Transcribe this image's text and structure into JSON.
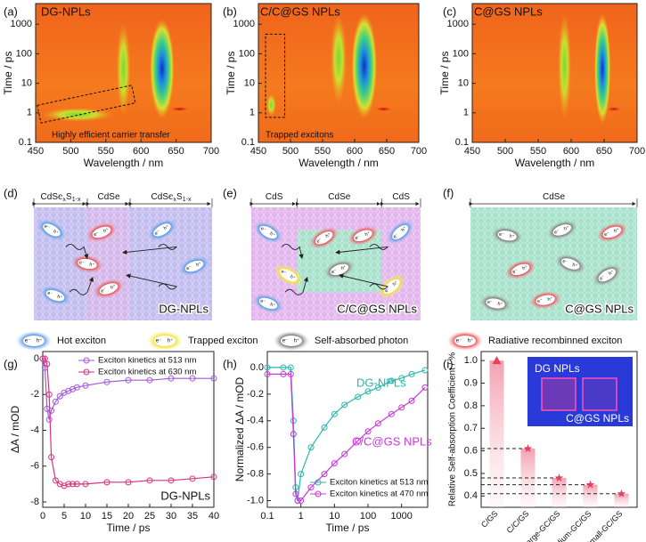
{
  "panel_labels": [
    "(a)",
    "(b)",
    "(c)",
    "(d)",
    "(e)",
    "(f)",
    "(g)",
    "(h)",
    "(i)"
  ],
  "chart_data": [
    {
      "type": "heatmap",
      "title": "DG-NPLs",
      "annotation": "Highly efficient carrier transfer",
      "xlabel": "Wavelength / nm",
      "ylabel": "Time / ps",
      "xlim": [
        450,
        700
      ],
      "xticks": [
        450,
        500,
        550,
        600,
        650,
        700
      ],
      "ylim": [
        0.1,
        5000
      ],
      "yticks": [
        0.1,
        1,
        10,
        100,
        1000
      ],
      "ylog": true
    },
    {
      "type": "heatmap",
      "title": "C/C@GS NPLs",
      "annotation": "Trapped excitons",
      "xlabel": "Wavelength / nm",
      "ylabel": "Time / ps",
      "xlim": [
        450,
        700
      ],
      "xticks": [
        450,
        500,
        550,
        600,
        650,
        700
      ],
      "ylim": [
        0.1,
        5000
      ],
      "yticks": [
        0.1,
        1,
        10,
        100,
        1000
      ],
      "ylog": true
    },
    {
      "type": "heatmap",
      "title": "C@GS NPLs",
      "xlabel": "Wavelength / nm",
      "ylabel": "Time / ps",
      "xlim": [
        450,
        700
      ],
      "xticks": [
        450,
        500,
        550,
        600,
        650,
        700
      ],
      "ylim": [
        0.1,
        5000
      ],
      "yticks": [
        0.1,
        1,
        10,
        100,
        1000
      ],
      "ylog": true
    },
    {
      "type": "line",
      "annotation": "DG-NPLs",
      "xlabel": "Time / ps",
      "ylabel": "ΔA / mOD",
      "xlim": [
        0,
        40
      ],
      "xticks": [
        0,
        5,
        10,
        15,
        20,
        25,
        30,
        35,
        40
      ],
      "ylim": [
        -8.3,
        0.4
      ],
      "yticks": [
        0,
        -2,
        -4,
        -6,
        -8
      ],
      "legend": "upper right",
      "x": [
        0,
        0.5,
        1,
        1.5,
        2,
        3,
        4,
        5,
        6,
        7,
        8,
        10,
        15,
        20,
        25,
        30,
        35,
        40
      ],
      "series": [
        {
          "name": "Exciton kinetics at 513 nm",
          "color": "#a25ad8",
          "values": [
            0,
            -0.5,
            -2.8,
            -3.4,
            -2.9,
            -2.4,
            -2.1,
            -1.9,
            -1.8,
            -1.7,
            -1.6,
            -1.5,
            -1.3,
            -1.2,
            -1.2,
            -1.1,
            -1.1,
            -1.1
          ]
        },
        {
          "name": "Exciton kinetics at 630 nm",
          "color": "#d8327e",
          "values": [
            0,
            0,
            -0.3,
            -2,
            -5.5,
            -6.8,
            -7,
            -7.1,
            -7,
            -7,
            -7,
            -7,
            -6.9,
            -6.9,
            -6.8,
            -6.8,
            -6.7,
            -6.6
          ]
        }
      ]
    },
    {
      "type": "line",
      "annotations": [
        "DG-NPLs",
        "C/C@GS NPLs"
      ],
      "xlabel": "Time / ps",
      "ylabel": "Normalized ΔA / mOD",
      "xlim": [
        0.1,
        6000
      ],
      "xticks": [
        0.1,
        1,
        10,
        100,
        1000
      ],
      "xlog": true,
      "ylim": [
        -1.05,
        0.12
      ],
      "yticks": [
        {
          "value": -1,
          "label": "-1.0"
        },
        {
          "value": -0.8,
          "label": "-0.8"
        },
        {
          "value": -0.6,
          "label": "-0.6"
        },
        {
          "value": -0.4,
          "label": "-0.4"
        },
        {
          "value": -0.2,
          "label": "-0.2"
        },
        {
          "value": 0,
          "label": "0.0"
        }
      ],
      "legend": "lower right",
      "x": [
        0.1,
        0.3,
        0.5,
        0.6,
        0.7,
        0.8,
        1,
        2,
        5,
        10,
        20,
        50,
        100,
        200,
        500,
        1000,
        2000,
        5000
      ],
      "series": [
        {
          "name": "Exciton kinetics at 513 nm",
          "color": "#2bb5b0",
          "values": [
            0,
            0,
            0,
            -0.4,
            -0.9,
            -1,
            -0.8,
            -0.6,
            -0.45,
            -0.35,
            -0.28,
            -0.22,
            -0.18,
            -0.15,
            -0.1,
            -0.08,
            -0.05,
            -0.02
          ]
        },
        {
          "name": "Exciton kinetics at 470 nm",
          "color": "#c838d8",
          "values": [
            -0.05,
            -0.05,
            -0.05,
            -0.5,
            -0.95,
            -1,
            -1,
            -0.9,
            -0.8,
            -0.72,
            -0.65,
            -0.55,
            -0.48,
            -0.42,
            -0.35,
            -0.3,
            -0.25,
            -0.15
          ]
        }
      ]
    },
    {
      "type": "bar",
      "ylabel": "Relative Self-absorption Coefficient / %",
      "categories": [
        "C/GS",
        "C/C/GS",
        "Large-GC/GS",
        "Medium-GC/GS",
        "Small-GC/GS"
      ],
      "values": [
        1.0,
        0.61,
        0.48,
        0.45,
        0.41
      ],
      "color": "#e8405a",
      "ylim": [
        0.35,
        1.04
      ],
      "yticks": [
        0.4,
        0.5,
        0.6,
        0.7,
        0.8,
        0.9,
        {
          "value": 1,
          "label": "1.0"
        }
      ],
      "inset_labels": [
        "DG NPLs",
        "C@GS NPLs"
      ]
    }
  ],
  "diagrams": [
    {
      "headers": [
        [
          "CdSe",
          "x",
          "S",
          "1-x"
        ],
        [
          "CdSe"
        ],
        [
          "CdSe",
          "x",
          "S",
          "1-x"
        ]
      ],
      "label": "DG-NPLs"
    },
    {
      "headers": [
        [
          "CdS"
        ],
        [
          "CdSe"
        ],
        [
          "CdS"
        ]
      ],
      "label": "C/C@GS NPLs"
    },
    {
      "headers": [
        [
          "CdSe"
        ]
      ],
      "label": "C@GS NPLs"
    }
  ],
  "carrier_labels": {
    "electron": "e⁻",
    "hole": "h⁺"
  },
  "legend": [
    "Hot exciton",
    "Trapped exciton",
    "Self-absorbed photon",
    "Radiative recombinned exciton"
  ]
}
